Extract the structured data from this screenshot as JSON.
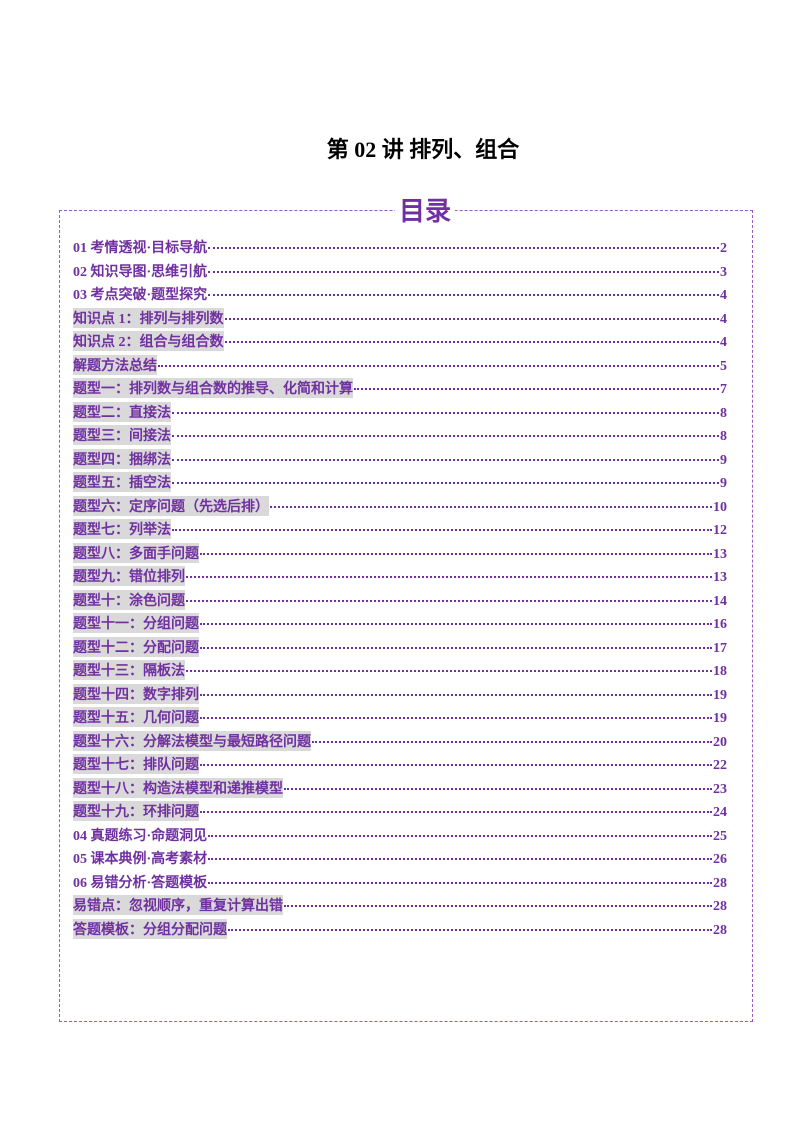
{
  "document": {
    "title": "第 02 讲  排列、组合"
  },
  "toc": {
    "heading": "目录",
    "accent_color": "#7030a0",
    "items": [
      {
        "label": "01 考情透视·目标导航",
        "page": "2",
        "highlight": false
      },
      {
        "label": "02 知识导图·思维引航",
        "page": "3",
        "highlight": false
      },
      {
        "label": "03 考点突破·题型探究",
        "page": "4",
        "highlight": false
      },
      {
        "label": "知识点 1：排列与排列数",
        "page": "4",
        "highlight": true
      },
      {
        "label": "知识点 2：组合与组合数",
        "page": "4",
        "highlight": true
      },
      {
        "label": "解题方法总结",
        "page": "5",
        "highlight": true
      },
      {
        "label": "题型一：排列数与组合数的推导、化简和计算",
        "page": "7",
        "highlight": true
      },
      {
        "label": "题型二：直接法",
        "page": "8",
        "highlight": true
      },
      {
        "label": "题型三：间接法",
        "page": "8",
        "highlight": true
      },
      {
        "label": "题型四：捆绑法",
        "page": "9",
        "highlight": true
      },
      {
        "label": "题型五：插空法",
        "page": "9",
        "highlight": true
      },
      {
        "label": "题型六：定序问题（先选后排）",
        "page": "10",
        "highlight": true
      },
      {
        "label": "题型七：列举法",
        "page": "12",
        "highlight": true
      },
      {
        "label": "题型八：多面手问题",
        "page": "13",
        "highlight": true
      },
      {
        "label": "题型九：错位排列",
        "page": "13",
        "highlight": true
      },
      {
        "label": "题型十：涂色问题",
        "page": "14",
        "highlight": true
      },
      {
        "label": "题型十一：分组问题",
        "page": "16",
        "highlight": true
      },
      {
        "label": "题型十二：分配问题",
        "page": "17",
        "highlight": true
      },
      {
        "label": "题型十三：隔板法",
        "page": "18",
        "highlight": true
      },
      {
        "label": "题型十四：数字排列",
        "page": "19",
        "highlight": true
      },
      {
        "label": "题型十五：几何问题",
        "page": "19",
        "highlight": true
      },
      {
        "label": "题型十六：分解法模型与最短路径问题",
        "page": "20",
        "highlight": true
      },
      {
        "label": "题型十七：排队问题",
        "page": "22",
        "highlight": true
      },
      {
        "label": "题型十八：构造法模型和递推模型",
        "page": "23",
        "highlight": true
      },
      {
        "label": "题型十九：环排问题",
        "page": "24",
        "highlight": true
      },
      {
        "label": "04 真题练习·命题洞见",
        "page": "25",
        "highlight": false
      },
      {
        "label": "05 课本典例·高考素材",
        "page": "26",
        "highlight": false
      },
      {
        "label": "06 易错分析·答题模板",
        "page": "28",
        "highlight": false
      },
      {
        "label": "易错点：忽视顺序，重复计算出错",
        "page": "28",
        "highlight": true
      },
      {
        "label": "答题模板：分组分配问题",
        "page": "28",
        "highlight": true
      }
    ]
  }
}
